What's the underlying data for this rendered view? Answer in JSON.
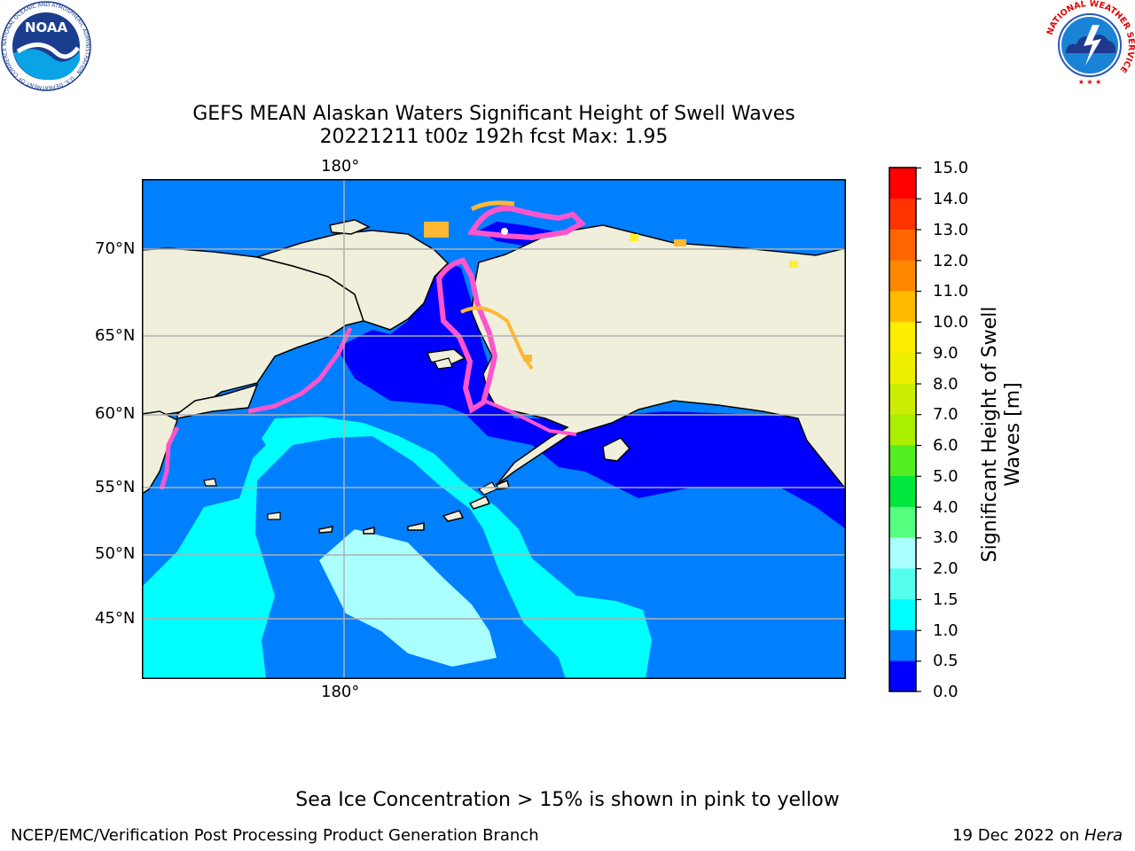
{
  "header": {
    "title_line1": "GEFS MEAN Alaskan Waters Significant Height of Swell Waves",
    "title_line2": "20221211 t00z 192h fcst   Max: 1.95"
  },
  "logos": {
    "noaa": {
      "text": "NOAA",
      "ring_text": "NATIONAL OCEANIC AND ATMOSPHERIC ADMINISTRATION · U.S. DEPARTMENT OF COMMERCE"
    },
    "nws": {
      "ring_text": "NATIONAL WEATHER SERVICE"
    }
  },
  "map": {
    "lon_labels": {
      "top": "180°",
      "bottom": "180°"
    },
    "lat_labels": [
      "70°N",
      "65°N",
      "60°N",
      "55°N",
      "50°N",
      "45°N"
    ],
    "colors": {
      "land": "#efefdc",
      "coast": "#000000",
      "grid": "#b0b0b0",
      "ice_pink": "#ff55cc",
      "ice_orange": "#ffb833",
      "ice_yellow": "#ffee33"
    }
  },
  "colorbar": {
    "label_line1": "Significant Height of Swell",
    "label_line2": "Waves [m]",
    "ticks": [
      "15.0",
      "14.0",
      "13.0",
      "12.0",
      "11.0",
      "10.0",
      "9.0",
      "8.0",
      "7.0",
      "6.0",
      "5.0",
      "4.0",
      "3.0",
      "2.0",
      "1.5",
      "1.0",
      "0.5",
      "0.0"
    ],
    "bins": [
      {
        "from": 0.0,
        "to": 0.5,
        "color": "#0000ff"
      },
      {
        "from": 0.5,
        "to": 1.0,
        "color": "#0080ff"
      },
      {
        "from": 1.0,
        "to": 1.5,
        "color": "#00ffff"
      },
      {
        "from": 1.5,
        "to": 2.0,
        "color": "#55ffee"
      },
      {
        "from": 2.0,
        "to": 3.0,
        "color": "#aaffff"
      },
      {
        "from": 3.0,
        "to": 4.0,
        "color": "#55ff7f"
      },
      {
        "from": 4.0,
        "to": 5.0,
        "color": "#00e63c"
      },
      {
        "from": 5.0,
        "to": 6.0,
        "color": "#55ee22"
      },
      {
        "from": 6.0,
        "to": 7.0,
        "color": "#aaee00"
      },
      {
        "from": 7.0,
        "to": 8.0,
        "color": "#ccee00"
      },
      {
        "from": 8.0,
        "to": 9.0,
        "color": "#eeee00"
      },
      {
        "from": 9.0,
        "to": 10.0,
        "color": "#ffee00"
      },
      {
        "from": 10.0,
        "to": 11.0,
        "color": "#ffbb00"
      },
      {
        "from": 11.0,
        "to": 12.0,
        "color": "#ff8800"
      },
      {
        "from": 12.0,
        "to": 13.0,
        "color": "#ff6600"
      },
      {
        "from": 13.0,
        "to": 14.0,
        "color": "#ff3300"
      },
      {
        "from": 14.0,
        "to": 15.0,
        "color": "#ff0000"
      }
    ]
  },
  "caption": "Sea Ice Concentration > 15% is shown in pink to yellow",
  "footer": {
    "left": "NCEP/EMC/Verification Post Processing Product Generation Branch",
    "date": "19 Dec 2022 on ",
    "host": "Hera"
  }
}
